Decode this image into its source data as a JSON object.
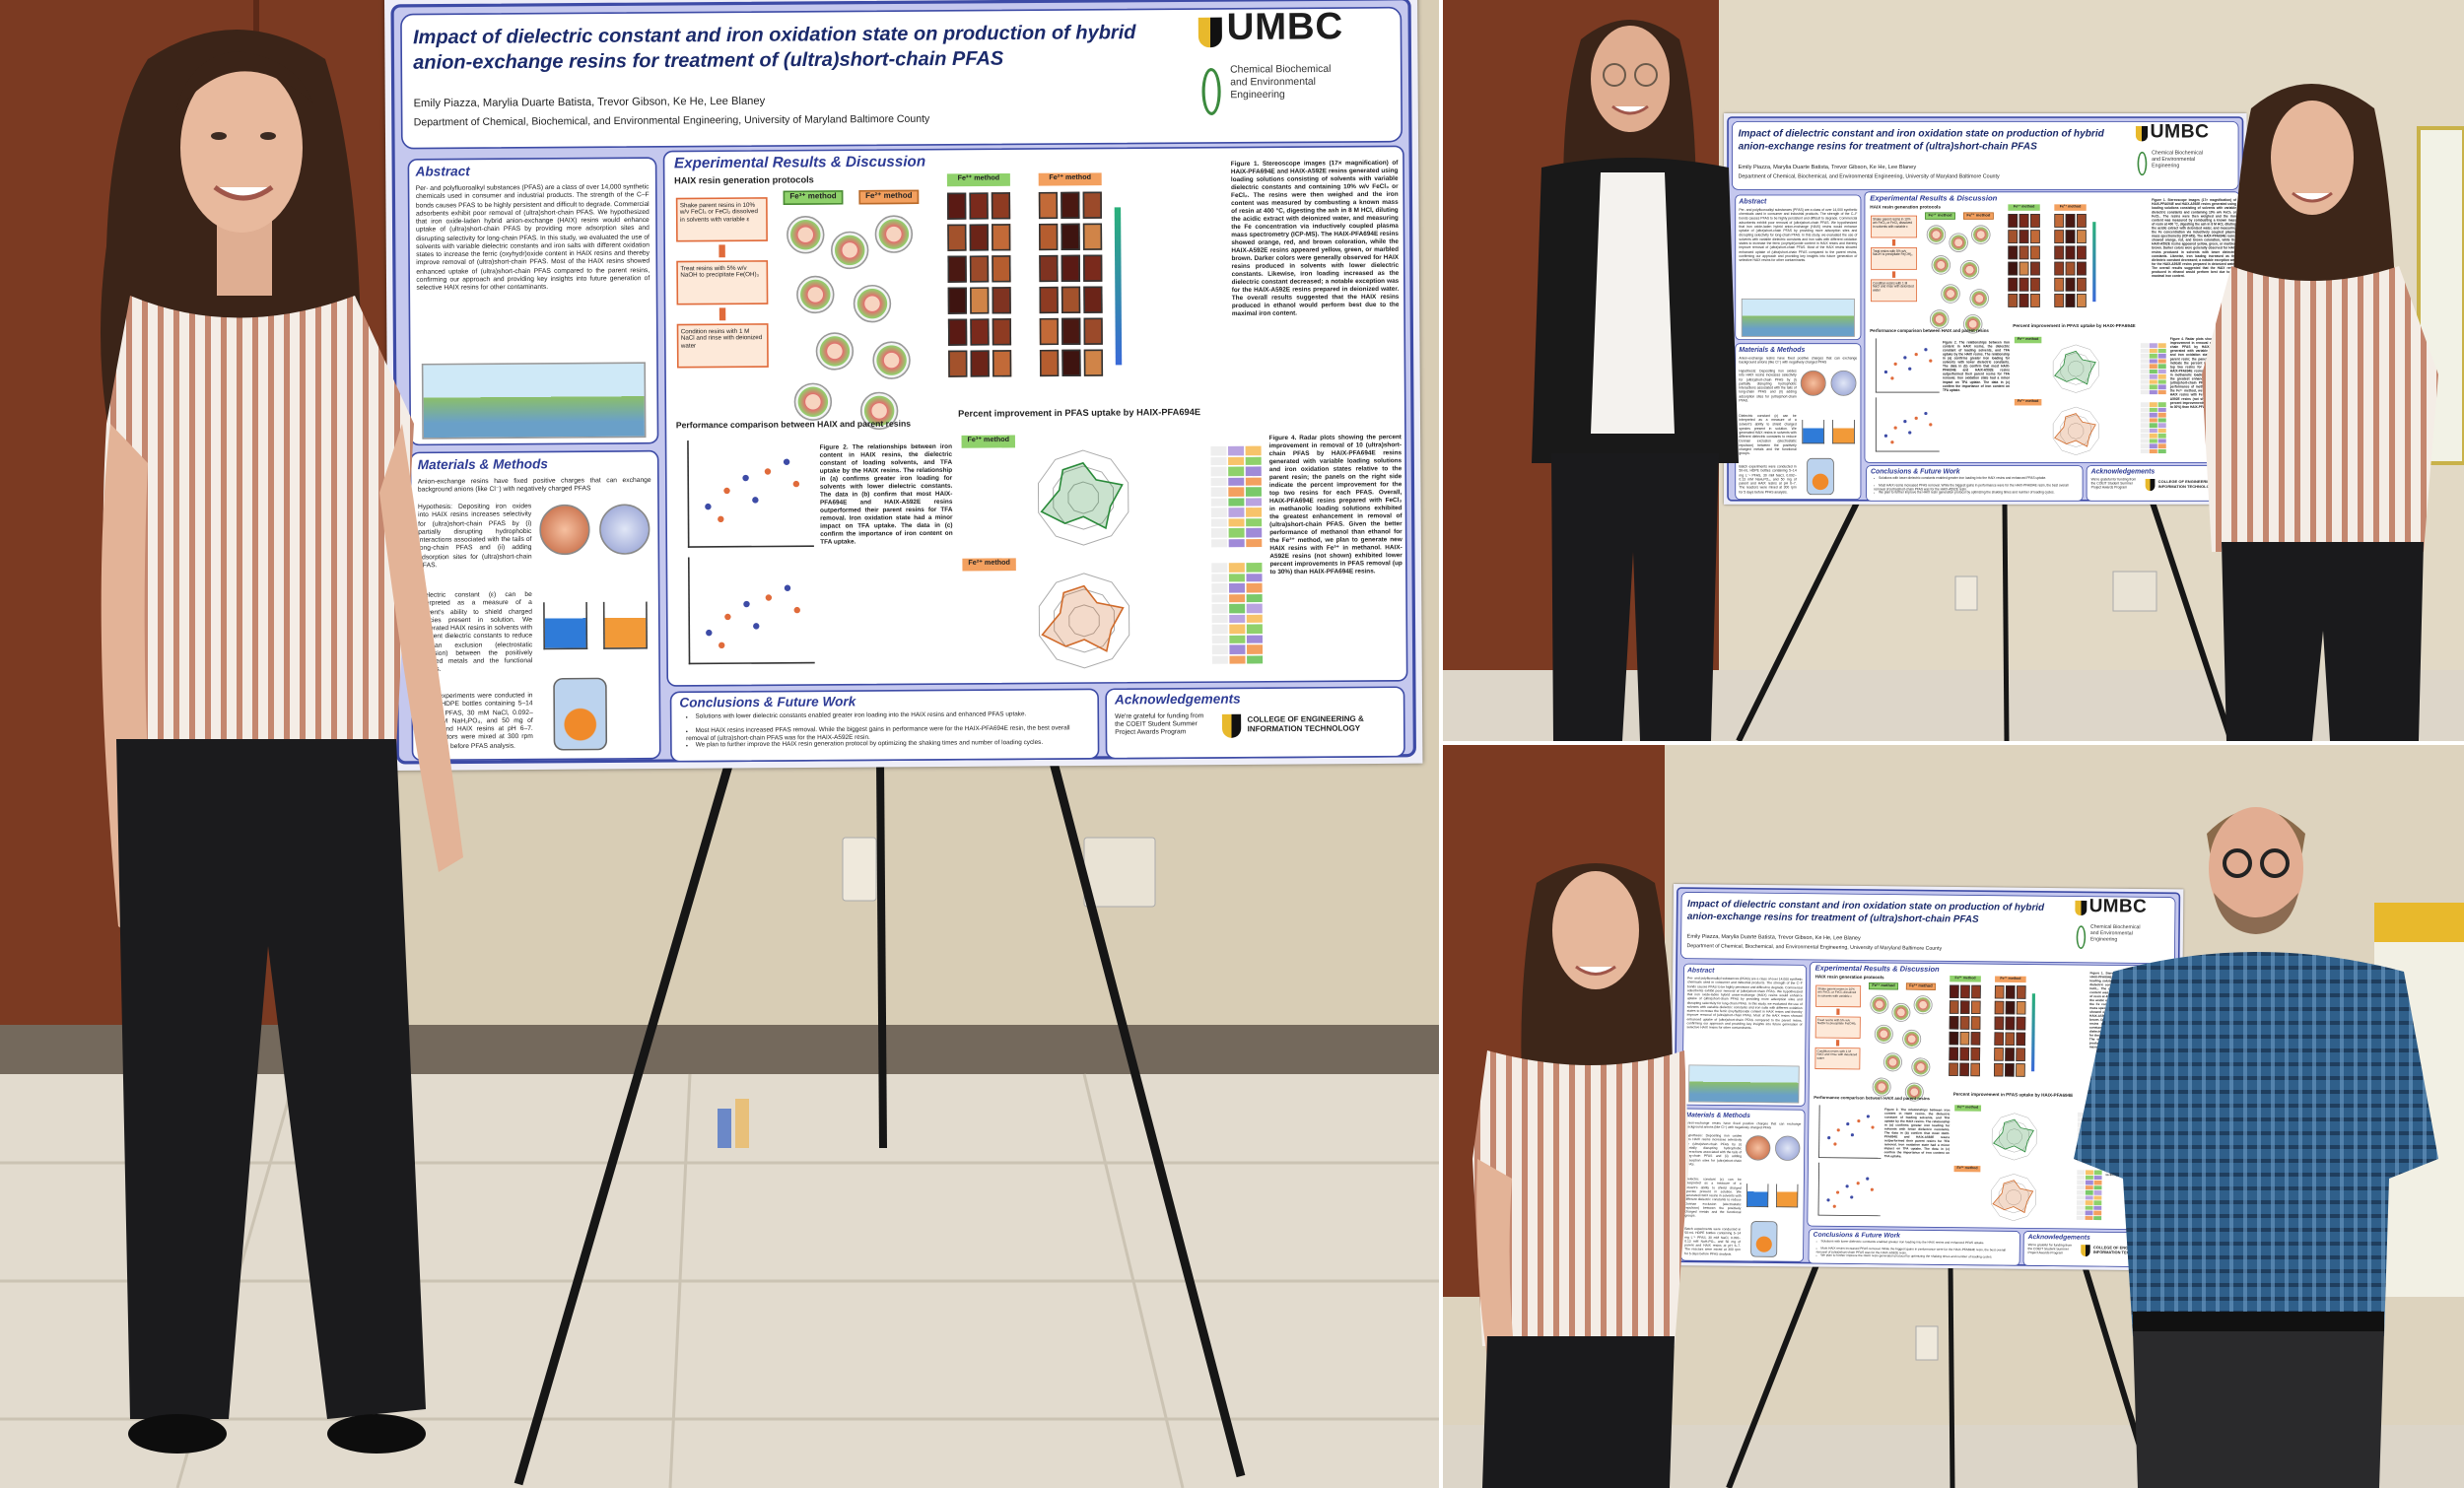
{
  "poster": {
    "title": "Impact of dielectric constant and iron oxidation state on production of hybrid anion-exchange resins for treatment of (ultra)short-chain PFAS",
    "authors": "Emily Piazza, Marylia Duarte Batista, Trevor Gibson, Ke He, Lee Blaney",
    "affiliation": "Department of Chemical, Biochemical, and Environmental Engineering, University of Maryland Baltimore County",
    "logo": "UMBC",
    "department_logo": "Chemical Biochemical and Environmental Engineering",
    "abstract": {
      "heading": "Abstract",
      "text": "Per- and polyfluoroalkyl substances (PFAS) are a class of over 14,000 synthetic chemicals used in consumer and industrial products. The strength of the C–F bonds causes PFAS to be highly persistent and difficult to degrade. Commercial adsorbents exhibit poor removal of (ultra)short-chain PFAS. We hypothesized that iron oxide-laden hybrid anion-exchange (HAIX) resins would enhance uptake of (ultra)short-chain PFAS by providing more adsorption sites and disrupting selectivity for long-chain PFAS. In this study, we evaluated the use of solvents with variable dielectric constants and iron salts with different oxidation states to increase the ferric (oxyhydr)oxide content in HAIX resins and thereby improve removal of (ultra)short-chain PFAS. Most of the HAIX resins showed enhanced uptake of (ultra)short-chain PFAS compared to the parent resins, confirming our approach and providing key insights into future generation of selective HAIX resins for other contaminants."
    },
    "methods": {
      "heading": "Materials & Methods",
      "intro": "Anion-exchange resins have fixed positive charges that can exchange background anions (like Cl⁻) with negatively charged PFAS",
      "hypothesis": "Hypothesis: Depositing iron oxides into HAIX resins increases selectivity for (ultra)short-chain PFAS by (i) partially disrupting hydrophobic interactions associated with the tails of long-chain PFAS and (ii) adding adsorption sites for (ultra)short-chain PFAS.",
      "dielectric": "Dielectric constant (ε) can be interpreted as a measure of a solvent's ability to shield charged species present in solution. We generated HAIX resins in solvents with different dielectric constants to reduce Donnan exclusion (electrostatic repulsion) between the positively charged metals and the functional groups.",
      "batch": "Batch experiments were conducted in 50-mL HDPE bottles containing 5–14 mg L⁻¹ PFAS, 30 mM NaCl, 0.092–0.13 mM NaH₂PO₄, and 50 mg of parent and HAIX resins at pH 6–7. The reactors were mixed at 300 rpm for 5 days before PFAS analysis."
    },
    "results": {
      "heading": "Experimental Results & Discussion",
      "protocols": "HAIX resin generation protocols",
      "steps": [
        "Shake parent resins in 10% w/v FeCl₃ or FeCl₂ dissolved in solvents with variable ε",
        "Treat resins with 5% w/v NaOH to precipitate Fe(OH)₃",
        "Condition resins with 1 M NaCl and rinse with deionized water"
      ],
      "fe3_method": "Fe³⁺ method",
      "fe2_method": "Fe²⁺ method",
      "figure1": "Figure 1. Stereoscope images (17× magnification) of HAIX-PFA694E and HAIX-A592E resins generated using loading solutions consisting of solvents with variable dielectric constants and containing 10% w/v FeCl₃ or FeCl₂. The resins were then weighed and the iron content was measured by combusting a known mass of resin at 400 °C, digesting the ash in 8 M HCl, diluting the acidic extract with deionized water, and measuring the Fe concentration via inductively coupled plasma mass spectrometry (ICP-MS). The HAIX-PFA694E resins showed orange, red, and brown coloration, while the HAIX-A592E resins appeared yellow, green, or marbled brown. Darker colors were generally observed for HAIX resins produced in solvents with lower dielectric constants. Likewise, iron loading increased as the dielectric constant decreased; a notable exception was for the HAIX-A592E resins prepared in deionized water. The overall results suggested that the HAIX resins produced in ethanol would perform best due to the maximal iron content.",
      "comparison": "Performance comparison between HAIX and parent resins",
      "figure2": "Figure 2. The relationships between iron content in HAIX resins, the dielectric constant of loading solvents, and TFA uptake by the HAIX resins. The relationship in (a) confirms greater iron loading for solvents with lower dielectric constants. The data in (b) confirm that most HAIX-PFA694E and HAIX-A592E resins outperformed their parent resins for TFA removal. Iron oxidation state had a minor impact on TFA uptake. The data in (c) confirm the importance of iron content on TFA uptake.",
      "improvement": "Percent improvement in PFAS uptake by HAIX-PFA694E",
      "figure4": "Figure 4. Radar plots showing the percent improvement in removal of 10 (ultra)short-chain PFAS by HAIX-PFA694E resins generated with variable loading solutions and iron oxidation states relative to the parent resin; the panels on the right side indicate the percent improvement for the top two resins for each PFAS. Overall, HAIX-PFA694E resins prepared with FeCl₃ in methanolic loading solutions exhibited the greatest enhancement in removal of (ultra)short-chain PFAS. Given the better performance of methanol than ethanol for the Fe³⁺ method, we plan to generate new HAIX resins with Fe³⁺ in methanol. HAIX-A592E resins (not shown) exhibited lower percent improvements in PFAS removal (up to 30%) than HAIX-PFA694E resins."
    },
    "conclusions": {
      "heading": "Conclusions & Future Work",
      "points": [
        "Solutions with lower dielectric constants enabled greater iron loading into the HAIX resins and enhanced PFAS uptake.",
        "Most HAIX resins increased PFAS removal. While the biggest gains in performance were for the HAIX-PFA694E resin, the best overall removal of (ultra)short-chain PFAS was for the HAIX-A592E resin.",
        "We plan to further improve the HAIX resin generation protocol by optimizing the shaking times and number of loading cycles."
      ]
    },
    "acknowledgements": {
      "heading": "Acknowledgements",
      "text": "We're grateful for funding from the COEIT Student Summer Project Awards Program",
      "college": "COLLEGE OF ENGINEERING & INFORMATION TECHNOLOGY"
    }
  }
}
